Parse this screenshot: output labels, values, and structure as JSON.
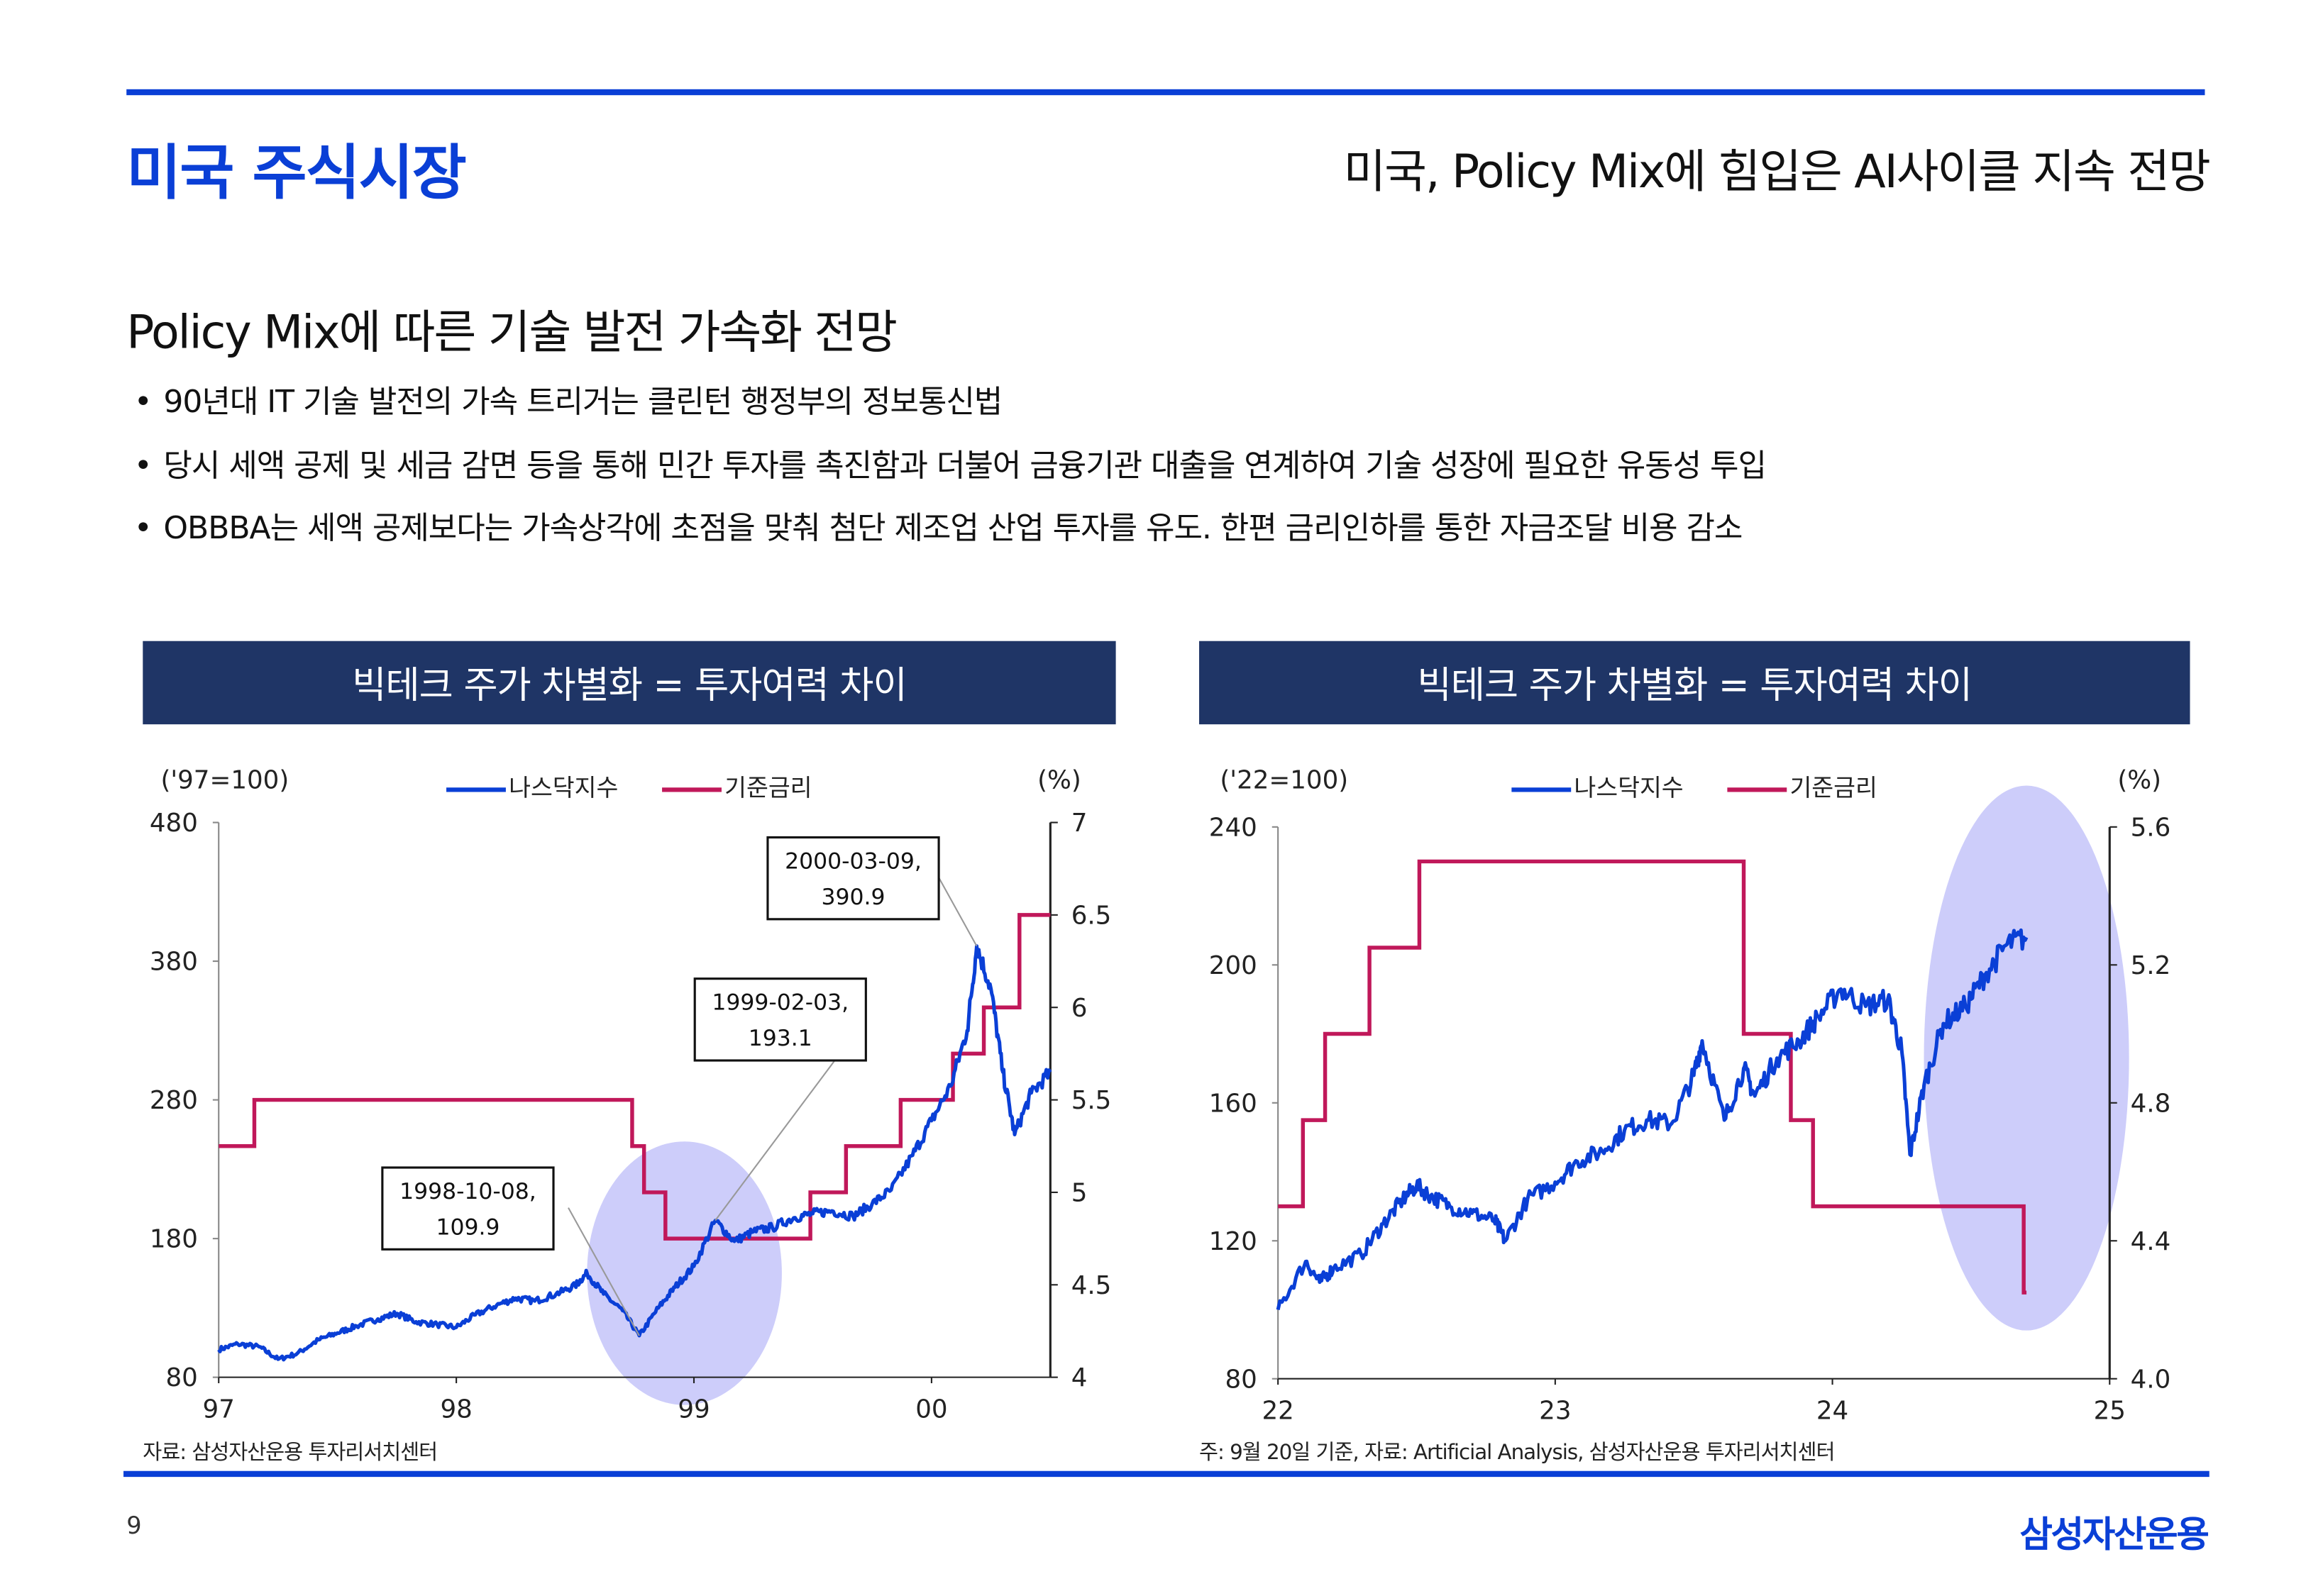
{
  "header": {
    "title": "미국 주식시장",
    "subtitle": "미국, Policy Mix에 힘입은 AI사이클 지속 전망"
  },
  "section": {
    "heading": "Policy Mix에 따른 기술 발전 가속화 전망",
    "bullets": [
      "90년대 IT 기술 발전의 가속 트리거는 클린턴 행정부의 정보통신법",
      "당시 세액 공제 및 세금 감면 등을 통해 민간 투자를 촉진함과 더불어 금융기관 대출을 연계하여 기술 성장에 필요한 유동성 투입",
      "OBBBA는 세액 공제보다는 가속상각에 초점을 맞춰 첨단 제조업 산업 투자를 유도. 한편 금리인하를 통한 자금조달 비용 감소"
    ]
  },
  "colors": {
    "brand": "#0a3fd6",
    "header_bg": "#1f3566",
    "nasdaq": "#0a3fd6",
    "rate": "#c0185a",
    "highlight": "#c8c8fa"
  },
  "chart_data": [
    {
      "type": "line",
      "title": "빅테크 주가 차별화 = 투자여력 차이",
      "ylabel_left": "('97=100)",
      "ylabel_right": "(%)",
      "source": "자료: 삼성자산운용 투자리서치센터",
      "xlim": [
        1997,
        2000.5
      ],
      "ylim_left": [
        80,
        480
      ],
      "ylim_right": [
        4,
        7
      ],
      "xticks": [
        {
          "v": 1997,
          "label": "97"
        },
        {
          "v": 1998,
          "label": "98"
        },
        {
          "v": 1999,
          "label": "99"
        },
        {
          "v": 2000,
          "label": "00"
        }
      ],
      "yticks_left": [
        80,
        180,
        280,
        380,
        480
      ],
      "yticks_right": [
        "4",
        "4.5",
        "5",
        "5.5",
        "6",
        "6.5",
        "7"
      ],
      "legend": [
        "나스닥지수",
        "기준금리"
      ],
      "nasdaq": {
        "x": [
          1997.0,
          1997.08,
          1997.17,
          1997.25,
          1997.33,
          1997.42,
          1997.5,
          1997.58,
          1997.67,
          1997.75,
          1997.83,
          1997.92,
          1998.0,
          1998.08,
          1998.17,
          1998.25,
          1998.33,
          1998.42,
          1998.5,
          1998.55,
          1998.62,
          1998.7,
          1998.77,
          1998.85,
          1998.92,
          1999.0,
          1999.09,
          1999.17,
          1999.25,
          1999.33,
          1999.42,
          1999.5,
          1999.58,
          1999.67,
          1999.75,
          1999.83,
          1999.92,
          2000.0,
          2000.08,
          2000.15,
          2000.19,
          2000.25,
          2000.3,
          2000.35,
          2000.42,
          2000.5
        ],
        "y": [
          100,
          104,
          102,
          93,
          97,
          107,
          112,
          117,
          122,
          126,
          120,
          118,
          116,
          125,
          132,
          137,
          135,
          140,
          146,
          155,
          140,
          128,
          110,
          130,
          145,
          160,
          193,
          178,
          185,
          188,
          195,
          198,
          200,
          196,
          205,
          215,
          240,
          265,
          290,
          330,
          390.9,
          360,
          300,
          255,
          285,
          300
        ]
      },
      "rate": {
        "x": [
          1997.0,
          1997.15,
          1998.74,
          1998.79,
          1998.88,
          1999.49,
          1999.64,
          1999.87,
          2000.09,
          2000.22,
          2000.37,
          2000.5
        ],
        "y": [
          5.25,
          5.5,
          5.25,
          5.0,
          4.75,
          5.0,
          5.25,
          5.5,
          5.75,
          6.0,
          6.5,
          6.5
        ]
      },
      "annotations": [
        {
          "text1": "1998-10-08,",
          "text2": "109.9",
          "x": 1998.77,
          "y": 109.9
        },
        {
          "text1": "1999-02-03,",
          "text2": "193.1",
          "x": 1999.09,
          "y": 193.1
        },
        {
          "text1": "2000-03-09,",
          "text2": "390.9",
          "x": 2000.19,
          "y": 390.9
        }
      ],
      "highlight": {
        "cx": 1998.96,
        "cy": 155,
        "rx": 0.41,
        "ry": 95
      }
    },
    {
      "type": "line",
      "title": "빅테크 주가 차별화 = 투자여력 차이",
      "ylabel_left": "('22=100)",
      "ylabel_right": "(%)",
      "source": "주: 9월 20일 기준, 자료: Artificial Analysis, 삼성자산운용 투자리서치센터",
      "xlim": [
        2022,
        2025
      ],
      "ylim_left": [
        80,
        240
      ],
      "ylim_right": [
        4.0,
        5.6
      ],
      "xticks": [
        {
          "v": 2022,
          "label": "22"
        },
        {
          "v": 2023,
          "label": "23"
        },
        {
          "v": 2024,
          "label": "24"
        },
        {
          "v": 2025,
          "label": "25"
        }
      ],
      "yticks_left": [
        80,
        120,
        160,
        200,
        240
      ],
      "yticks_right": [
        "4.0",
        "4.4",
        "4.8",
        "5.2",
        "5.6"
      ],
      "legend": [
        "나스닥지수",
        "기준금리"
      ],
      "nasdaq": {
        "x": [
          2022.0,
          2022.1,
          2022.15,
          2022.2,
          2022.3,
          2022.38,
          2022.45,
          2022.5,
          2022.55,
          2022.62,
          2022.7,
          2022.78,
          2022.82,
          2022.9,
          2023.0,
          2023.08,
          2023.17,
          2023.25,
          2023.33,
          2023.42,
          2023.5,
          2023.53,
          2023.61,
          2023.68,
          2023.72,
          2023.8,
          2023.88,
          2023.95,
          2024.03,
          2024.12,
          2024.2,
          2024.25,
          2024.28,
          2024.33,
          2024.4,
          2024.48,
          2024.55,
          2024.63,
          2024.7
        ],
        "y": [
          100,
          114,
          108,
          112,
          116,
          125,
          132,
          136,
          133,
          130,
          128,
          126,
          120,
          132,
          137,
          143,
          146,
          152,
          155,
          154,
          168,
          178,
          155,
          170,
          162,
          173,
          178,
          185,
          193,
          188,
          190,
          175,
          145,
          165,
          183,
          188,
          197,
          206,
          208
        ]
      },
      "rate": {
        "x": [
          2022.0,
          2022.09,
          2022.17,
          2022.33,
          2022.51,
          2023.68,
          2023.85,
          2023.93,
          2024.67,
          2024.69,
          2024.7
        ],
        "y": [
          4.5,
          4.75,
          5.0,
          5.25,
          5.5,
          5.0,
          4.75,
          4.5,
          4.5,
          4.25,
          4.25
        ]
      },
      "highlight": {
        "cx": 2024.7,
        "cy": 173,
        "rx": 0.37,
        "ry": 79
      }
    }
  ],
  "footer": {
    "page": "9",
    "logo": "삼성자산운용"
  }
}
